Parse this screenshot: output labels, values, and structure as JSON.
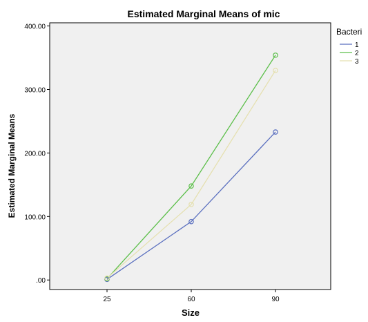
{
  "chart_data": {
    "type": "line",
    "title": "Estimated Marginal Means of mic",
    "xlabel": "Size",
    "ylabel": "Estimated Marginal Means",
    "categories": [
      "25",
      "60",
      "90"
    ],
    "ylim": [
      -15,
      405
    ],
    "yticks": [
      0,
      100,
      200,
      300,
      400
    ],
    "ytick_labels": [
      ".00",
      "100.00",
      "200.00",
      "300.00",
      "400.00"
    ],
    "legend_title": "Bacteri",
    "legend_position": "right",
    "grid": false,
    "plot_background": "#f0f0f0",
    "series": [
      {
        "name": "1",
        "color": "#5a6fbf",
        "values": [
          1,
          92,
          233
        ]
      },
      {
        "name": "2",
        "color": "#5cbf4a",
        "values": [
          2,
          148,
          354
        ]
      },
      {
        "name": "3",
        "color": "#e5e0b0",
        "values": [
          3,
          119,
          330
        ]
      }
    ]
  }
}
